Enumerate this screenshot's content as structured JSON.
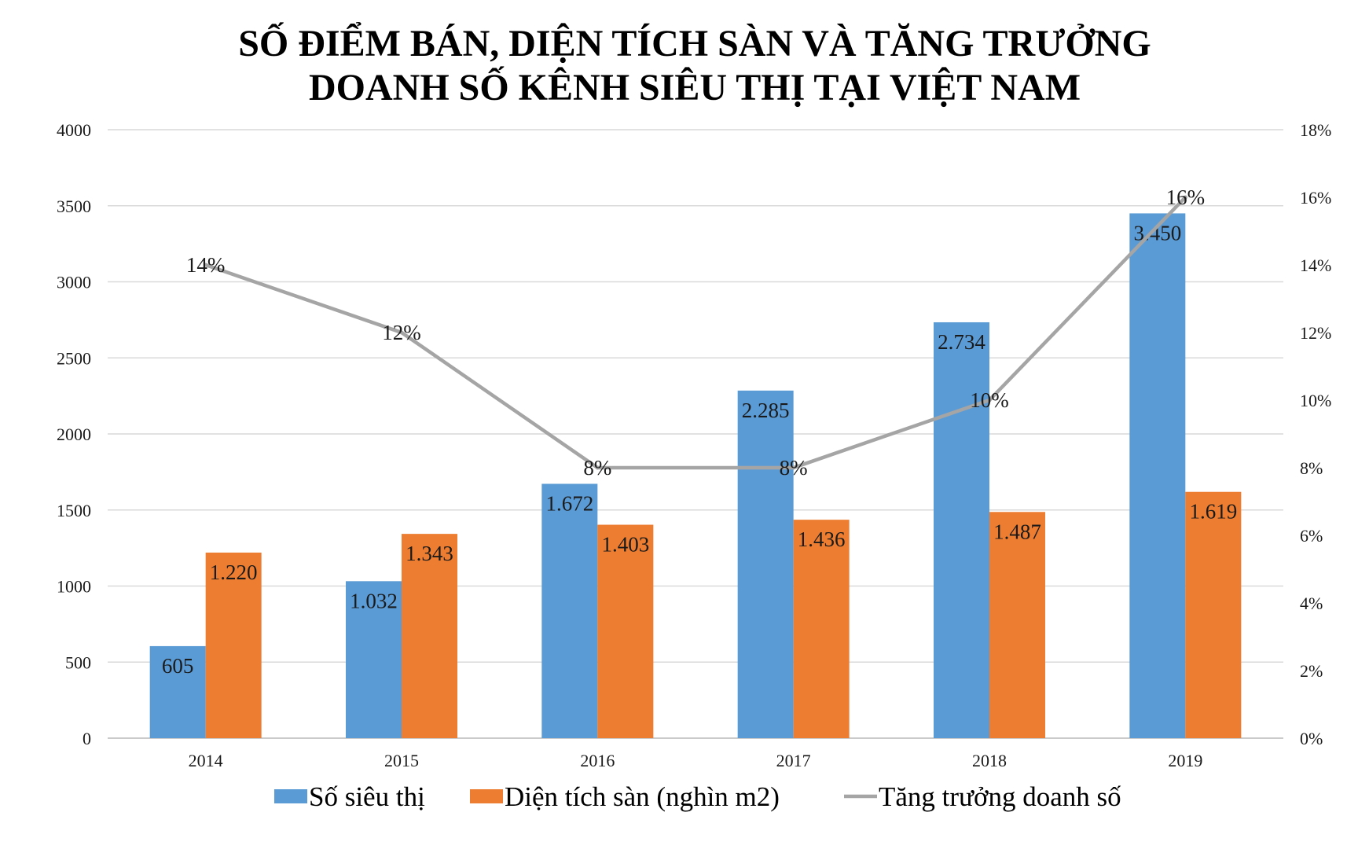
{
  "chart_data": {
    "type": "bar",
    "title_lines": [
      "SỐ ĐIỂM BÁN, DIỆN TÍCH SÀN VÀ TĂNG TRƯỞNG",
      "DOANH SỐ KÊNH SIÊU THỊ TẠI VIỆT NAM"
    ],
    "categories": [
      "2014",
      "2015",
      "2016",
      "2017",
      "2018",
      "2019"
    ],
    "series": [
      {
        "name": "Số siêu thị",
        "kind": "bar",
        "axis": "left",
        "color": "#5B9BD5",
        "values": [
          605,
          1032,
          1672,
          2285,
          2734,
          3450
        ],
        "labels": [
          "605",
          "1.032",
          "1.672",
          "2.285",
          "2.734",
          "3.450"
        ]
      },
      {
        "name": "Diện tích sàn (nghìn m2)",
        "kind": "bar",
        "axis": "left",
        "color": "#ED7D31",
        "values": [
          1220,
          1343,
          1403,
          1436,
          1487,
          1619
        ],
        "labels": [
          "1.220",
          "1.343",
          "1.403",
          "1.436",
          "1.487",
          "1.619"
        ]
      },
      {
        "name": "Tăng trưởng doanh số",
        "kind": "line",
        "axis": "right",
        "color": "#A5A5A5",
        "values": [
          14,
          12,
          8,
          8,
          10,
          16
        ],
        "labels": [
          "14%",
          "12%",
          "8%",
          "8%",
          "10%",
          "16%"
        ]
      }
    ],
    "y_left": {
      "min": 0,
      "max": 4000,
      "ticks": [
        "0",
        "500",
        "1000",
        "1500",
        "2000",
        "2500",
        "3000",
        "3500",
        "4000"
      ]
    },
    "y_right": {
      "min": 0,
      "max": 18,
      "ticks": [
        "0%",
        "2%",
        "4%",
        "6%",
        "8%",
        "10%",
        "12%",
        "14%",
        "16%",
        "18%"
      ]
    },
    "legend": "bottom",
    "grid": true,
    "grid_color": "#D9D9D9"
  }
}
